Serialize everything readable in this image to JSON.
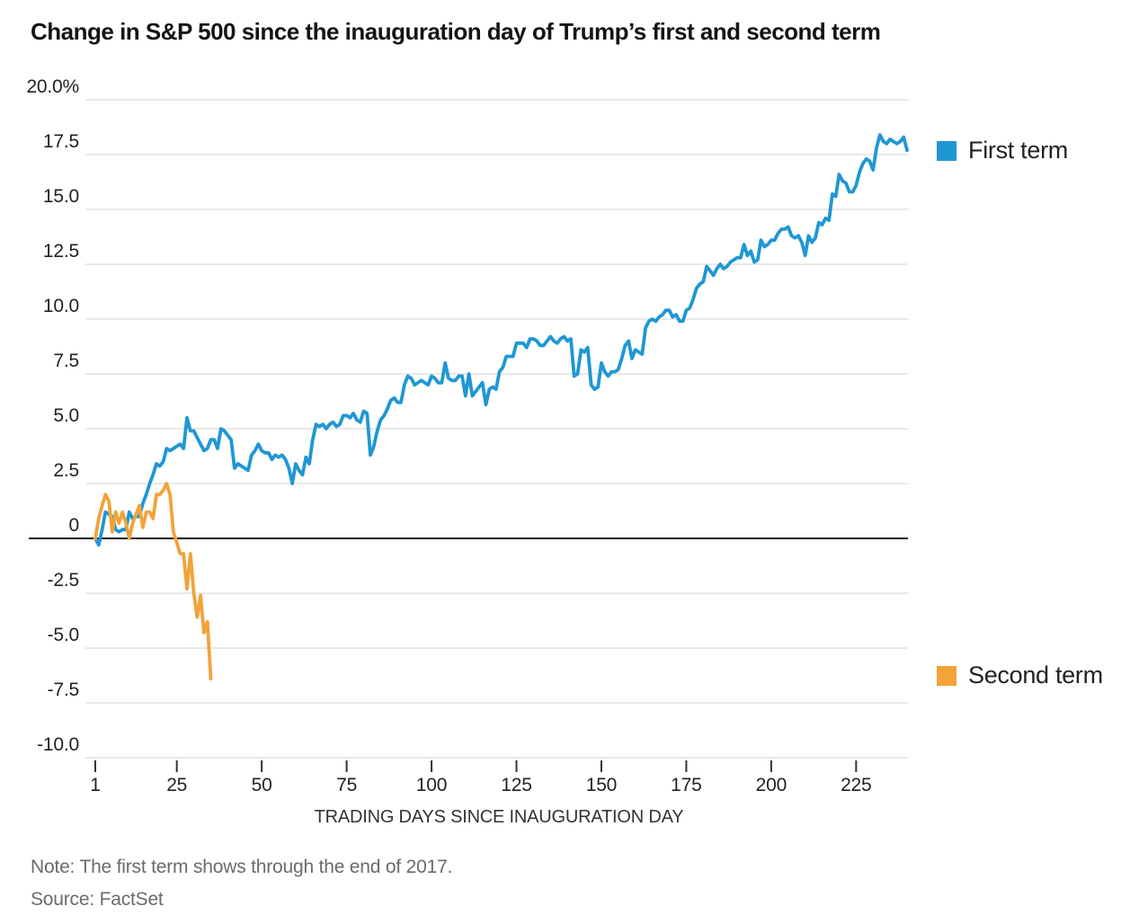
{
  "title": "Change in S&P 500 since the inauguration day of Trump’s first and second term",
  "note": "Note: The first term shows through the end of 2017.",
  "source": "Source: FactSet",
  "colors": {
    "first_term": "#1f97d4",
    "second_term": "#f2a33a",
    "grid": "#e2e2e2",
    "zero_line": "#141414",
    "tick": "#333333",
    "text": "#222222",
    "muted": "#6b6b6b"
  },
  "chart_data": {
    "type": "line",
    "title": "Change in S&P 500 since the inauguration day of Trump’s first and second term",
    "xlabel": "TRADING DAYS SINCE INAUGURATION DAY",
    "ylabel": "",
    "grid": true,
    "xlim": [
      1,
      240
    ],
    "ylim": [
      -10,
      20
    ],
    "legend_position": "right-of-plot, aligned with each line's end",
    "x_ticks": [
      {
        "label": "1",
        "day": 1
      },
      {
        "label": "25",
        "day": 25
      },
      {
        "label": "50",
        "day": 50
      },
      {
        "label": "75",
        "day": 75
      },
      {
        "label": "100",
        "day": 100
      },
      {
        "label": "125",
        "day": 125
      },
      {
        "label": "150",
        "day": 150
      },
      {
        "label": "175",
        "day": 175
      },
      {
        "label": "200",
        "day": 200
      },
      {
        "label": "225",
        "day": 225
      }
    ],
    "y_ticks": [
      {
        "label": "20.0%",
        "value": 20
      },
      {
        "label": "17.5",
        "value": 17.5
      },
      {
        "label": "15.0",
        "value": 15
      },
      {
        "label": "12.5",
        "value": 12.5
      },
      {
        "label": "10.0",
        "value": 10
      },
      {
        "label": "7.5",
        "value": 7.5
      },
      {
        "label": "5.0",
        "value": 5
      },
      {
        "label": "2.5",
        "value": 2.5
      },
      {
        "label": "0",
        "value": 0
      },
      {
        "label": "-2.5",
        "value": -2.5
      },
      {
        "label": "-5.0",
        "value": -5
      },
      {
        "label": "-7.5",
        "value": -7.5
      },
      {
        "label": "-10.0",
        "value": -10
      }
    ],
    "series": [
      {
        "name": "First term",
        "color_key": "first_term",
        "days_from": 1,
        "values": [
          0.0,
          -0.3,
          0.4,
          1.2,
          1.1,
          1.0,
          0.4,
          0.3,
          0.4,
          0.4,
          1.2,
          0.9,
          1.0,
          1.0,
          1.6,
          2.0,
          2.5,
          2.9,
          3.4,
          3.3,
          3.5,
          4.1,
          4.0,
          4.1,
          4.2,
          4.3,
          4.1,
          5.5,
          4.9,
          4.9,
          4.6,
          4.3,
          4.0,
          4.1,
          4.5,
          4.5,
          4.1,
          5.0,
          4.9,
          4.7,
          4.5,
          3.2,
          3.4,
          3.3,
          3.2,
          3.1,
          3.8,
          4.0,
          4.3,
          4.0,
          3.9,
          3.9,
          3.6,
          3.8,
          3.7,
          3.8,
          3.6,
          3.2,
          2.5,
          3.4,
          3.1,
          2.9,
          3.7,
          3.4,
          4.5,
          5.2,
          5.1,
          5.2,
          5.0,
          5.2,
          5.3,
          5.1,
          5.2,
          5.6,
          5.6,
          5.5,
          5.7,
          5.4,
          5.3,
          5.8,
          5.7,
          3.8,
          4.2,
          4.9,
          5.4,
          5.6,
          5.9,
          6.3,
          6.4,
          6.2,
          6.2,
          7.0,
          7.4,
          7.3,
          7.0,
          7.1,
          7.2,
          7.1,
          7.0,
          7.4,
          7.3,
          7.1,
          7.1,
          8.0,
          7.3,
          7.2,
          7.2,
          7.4,
          7.4,
          6.5,
          7.5,
          6.5,
          6.7,
          6.9,
          7.1,
          6.1,
          6.8,
          6.9,
          6.8,
          7.6,
          7.8,
          8.3,
          8.3,
          8.3,
          8.9,
          8.9,
          8.9,
          8.7,
          9.1,
          9.1,
          9.0,
          8.8,
          8.8,
          9.0,
          9.2,
          9.0,
          8.9,
          9.1,
          9.2,
          9.0,
          9.1,
          7.4,
          7.5,
          8.6,
          8.5,
          8.7,
          7.0,
          6.8,
          6.9,
          8.0,
          7.6,
          7.4,
          7.6,
          7.6,
          7.7,
          8.2,
          8.8,
          9.0,
          8.2,
          8.6,
          8.5,
          8.4,
          9.6,
          9.9,
          10.0,
          9.9,
          10.1,
          10.2,
          10.4,
          10.4,
          10.1,
          10.2,
          9.9,
          9.9,
          10.4,
          10.5,
          10.9,
          11.4,
          11.6,
          11.7,
          12.4,
          12.2,
          12.0,
          12.3,
          12.5,
          12.3,
          12.4,
          12.6,
          12.7,
          12.8,
          12.8,
          13.4,
          12.9,
          13.1,
          12.6,
          12.7,
          13.6,
          13.3,
          13.4,
          13.6,
          13.6,
          13.9,
          14.1,
          14.1,
          14.2,
          13.8,
          13.7,
          13.8,
          13.5,
          12.9,
          13.8,
          13.5,
          13.7,
          14.4,
          14.3,
          14.6,
          14.5,
          15.7,
          15.6,
          16.6,
          16.3,
          16.2,
          15.8,
          15.8,
          16.1,
          16.7,
          17.1,
          17.3,
          17.2,
          16.8,
          17.8,
          18.4,
          18.1,
          18.0,
          18.2,
          18.1,
          18.0,
          18.1,
          18.3,
          17.7
        ]
      },
      {
        "name": "Second term",
        "color_key": "second_term",
        "days_from": 1,
        "values": [
          0.0,
          0.9,
          1.5,
          2.0,
          1.7,
          0.3,
          1.2,
          0.7,
          1.2,
          0.7,
          0.0,
          0.7,
          1.1,
          1.5,
          0.5,
          1.2,
          1.2,
          0.9,
          2.0,
          2.0,
          2.2,
          2.5,
          2.0,
          0.3,
          -0.2,
          -0.7,
          -0.7,
          -2.3,
          -0.7,
          -2.5,
          -3.6,
          -2.6,
          -4.3,
          -3.8,
          -6.4
        ]
      }
    ]
  }
}
